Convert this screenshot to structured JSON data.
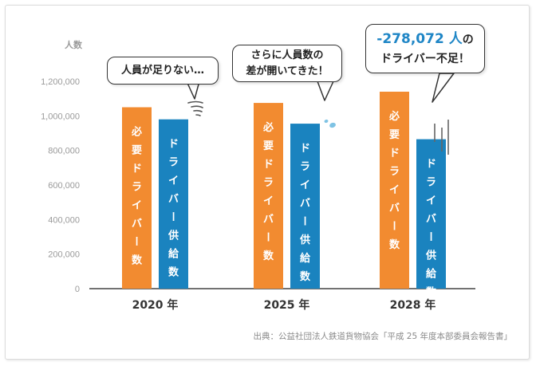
{
  "chart_data": {
    "type": "bar",
    "ylabel": "人数",
    "ylim": [
      0,
      1200000
    ],
    "yticks": [
      "0",
      "200,000",
      "400,000",
      "600,000",
      "800,000",
      "1,000,000",
      "1,200,000"
    ],
    "categories": [
      "2020 年",
      "2025 年",
      "2028 年"
    ],
    "series": [
      {
        "name": "必要ドライバー数",
        "color": "#f28b30",
        "values": [
          1050000,
          1075000,
          1140000
        ]
      },
      {
        "name": "ドライバー供給数",
        "color": "#1a83bf",
        "values": [
          980000,
          955000,
          865000
        ]
      }
    ],
    "grid": false
  },
  "callouts": [
    {
      "lines": [
        "人員が足りない…"
      ]
    },
    {
      "lines": [
        "さらに人員数の",
        "差が開いてきた！"
      ]
    },
    {
      "highlight": "-278,072 人",
      "suffix": "の",
      "second": "ドライバー不足！"
    }
  ],
  "source": "出典：公益社団法人鉄道貨物協会「平成 25 年度本部委員会報告書」"
}
